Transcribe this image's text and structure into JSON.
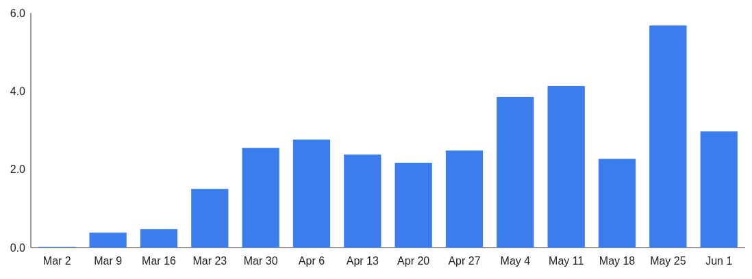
{
  "chart_data": {
    "type": "bar",
    "categories": [
      "Mar 2",
      "Mar 9",
      "Mar 16",
      "Mar 23",
      "Mar 30",
      "Apr 6",
      "Apr 13",
      "Apr 20",
      "Apr 27",
      "May 4",
      "May 11",
      "May 18",
      "May 25",
      "Jun 1"
    ],
    "values": [
      0.02,
      0.38,
      0.47,
      1.5,
      2.55,
      2.76,
      2.38,
      2.17,
      2.48,
      3.85,
      4.13,
      2.27,
      5.68,
      2.97
    ],
    "color": "#3b7ded",
    "ylim": [
      0,
      6
    ],
    "yticks": [
      {
        "value": 0,
        "label": "0.0"
      },
      {
        "value": 2,
        "label": "2.0"
      },
      {
        "value": 4,
        "label": "4.0"
      },
      {
        "value": 6,
        "label": "6.0"
      }
    ],
    "grid": false
  }
}
